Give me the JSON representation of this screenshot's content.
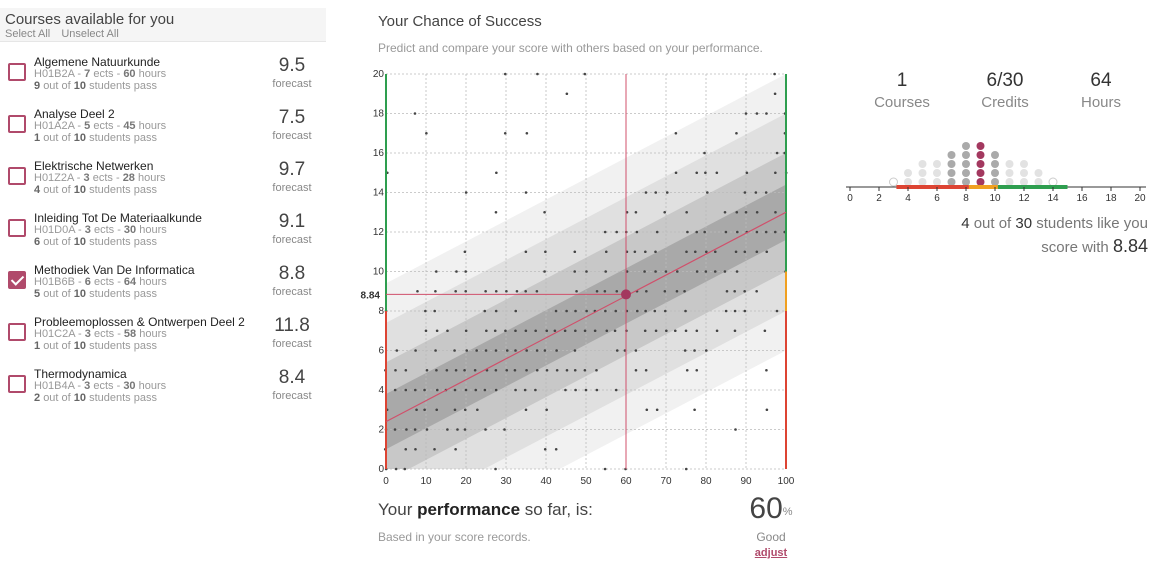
{
  "left": {
    "title": "Courses available for you",
    "select_all": "Select All",
    "unselect_all": "Unselect All",
    "courses": [
      {
        "name": "Algemene Natuurkunde",
        "code": "H01B2A",
        "ects": "7",
        "hours": "60",
        "pass": "9",
        "total": "10",
        "score": "9.5",
        "checked": false
      },
      {
        "name": "Analyse Deel 2",
        "code": "H01A2A",
        "ects": "5",
        "hours": "45",
        "pass": "1",
        "total": "10",
        "score": "7.5",
        "checked": false
      },
      {
        "name": "Elektrische Netwerken",
        "code": "H01Z2A",
        "ects": "3",
        "hours": "28",
        "pass": "4",
        "total": "10",
        "score": "9.7",
        "checked": false
      },
      {
        "name": "Inleiding Tot De Materiaalkunde",
        "code": "H01D0A",
        "ects": "3",
        "hours": "30",
        "pass": "6",
        "total": "10",
        "score": "9.1",
        "checked": false
      },
      {
        "name": "Methodiek Van De Informatica",
        "code": "H01B6B",
        "ects": "6",
        "hours": "64",
        "pass": "5",
        "total": "10",
        "score": "8.8",
        "checked": true
      },
      {
        "name": "Probleemoplossen & Ontwerpen Deel 2",
        "code": "H01C2A",
        "ects": "3",
        "hours": "58",
        "pass": "1",
        "total": "10",
        "score": "11.8",
        "checked": false
      },
      {
        "name": "Thermodynamica",
        "code": "H01B4A",
        "ects": "3",
        "hours": "30",
        "pass": "2",
        "total": "10",
        "score": "8.4",
        "checked": false
      }
    ],
    "ects_word": "ects",
    "hours_word": "hours",
    "out_of_word": "out of",
    "students_pass_word": "students pass",
    "forecast_label": "forecast"
  },
  "middle": {
    "title": "Your Chance of Success",
    "subtitle": "Predict and compare your score with others based on your performance.",
    "performance_prefix": "Your ",
    "performance_bold": "performance",
    "performance_suffix": " so far, is:",
    "performance_sub": "Based in your score records.",
    "performance_value": "60",
    "performance_unit": "%",
    "performance_label": "Good",
    "adjust_label": "adjust"
  },
  "chart_data": {
    "type": "scatter",
    "x_ticks": [
      "0",
      "10",
      "20",
      "30",
      "40",
      "50",
      "60",
      "70",
      "80",
      "90",
      "100"
    ],
    "y_ticks": [
      "0",
      "2",
      "4",
      "6",
      "8",
      "10",
      "12",
      "14",
      "16",
      "18",
      "20"
    ],
    "xlim": [
      0,
      100
    ],
    "ylim": [
      0,
      20
    ],
    "marker": {
      "x": 60,
      "y": 8.84,
      "label": "8.84"
    },
    "trend": {
      "x0": 0,
      "y0": 2.4,
      "x1": 100,
      "y1": 13.0
    },
    "colors": {
      "marker": "#a3385f",
      "trend": "#d0506b",
      "green": "#2e9e4f",
      "orange": "#f0a020",
      "red": "#dd4433"
    }
  },
  "right": {
    "courses_value": "1",
    "courses_label": "Courses",
    "credits_value": "6/30",
    "credits_label": "Credits",
    "hours_value": "64",
    "hours_label": "Hours",
    "axis_ticks": [
      "0",
      "2",
      "4",
      "6",
      "8",
      "10",
      "12",
      "14",
      "16",
      "18",
      "20"
    ],
    "like_count": "4",
    "like_total": "30",
    "like_line1_a": " out of ",
    "like_line1_b": " students like you",
    "like_line2_prefix": "score with ",
    "like_score": "8.84"
  }
}
